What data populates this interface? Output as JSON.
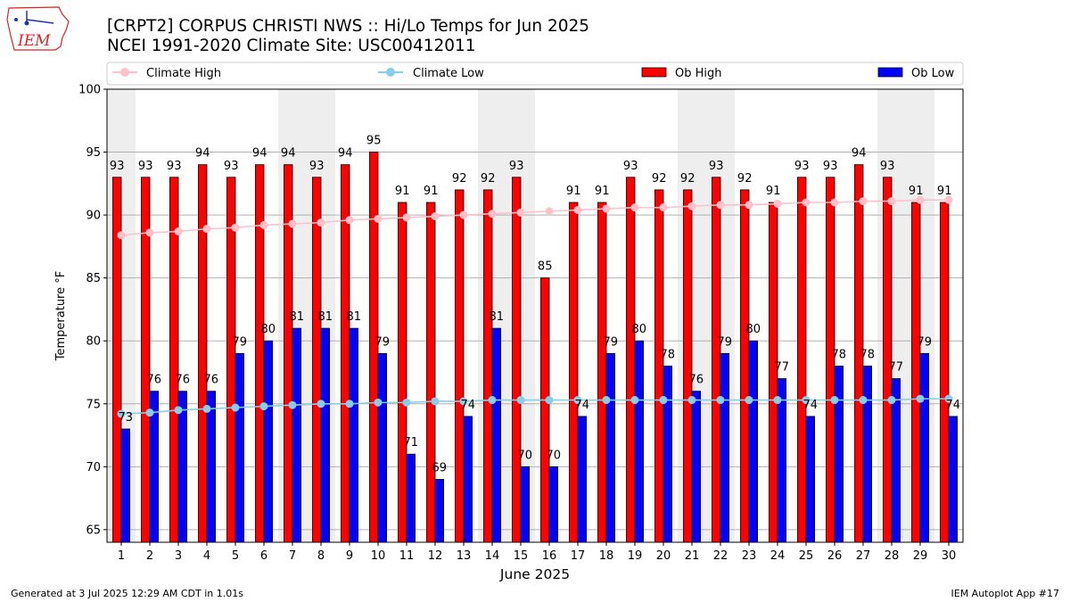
{
  "header": {
    "title_line1": "[CRPT2] CORPUS CHRISTI NWS :: Hi/Lo Temps for Jun 2025",
    "title_line2": "NCEI 1991-2020 Climate Site: USC00412011",
    "logo_text": "IEM"
  },
  "footer": {
    "generated": "Generated at 3 Jul 2025 12:29 AM CDT in 1.01s",
    "app": "IEM Autoplot App #17"
  },
  "colors": {
    "ob_high": "#ff0000",
    "ob_low": "#0000ff",
    "climate_high": "#ffc0cb",
    "climate_low": "#87ceeb",
    "weekend_shade": "#eeeeee",
    "grid": "#b0b0b0"
  },
  "chart_data": {
    "type": "bar",
    "title": "[CRPT2] CORPUS CHRISTI NWS :: Hi/Lo Temps for Jun 2025",
    "subtitle": "NCEI 1991-2020 Climate Site: USC00412011",
    "xlabel": "June 2025",
    "ylabel": "Temperature °F",
    "ylim": [
      64,
      100
    ],
    "yticks": [
      65,
      70,
      75,
      80,
      85,
      90,
      95,
      100
    ],
    "categories": [
      "1",
      "2",
      "3",
      "4",
      "5",
      "6",
      "7",
      "8",
      "9",
      "10",
      "11",
      "12",
      "13",
      "14",
      "15",
      "16",
      "17",
      "18",
      "19",
      "20",
      "21",
      "22",
      "23",
      "24",
      "25",
      "26",
      "27",
      "28",
      "29",
      "30"
    ],
    "grid": true,
    "legend_position": "top",
    "weekend_days": [
      1,
      7,
      8,
      14,
      15,
      21,
      22,
      28,
      29
    ],
    "series": [
      {
        "name": "Climate High",
        "kind": "line",
        "values": [
          88.4,
          88.6,
          88.7,
          88.9,
          89.0,
          89.2,
          89.3,
          89.4,
          89.6,
          89.7,
          89.8,
          89.9,
          90.0,
          90.1,
          90.2,
          90.3,
          90.4,
          90.5,
          90.6,
          90.6,
          90.7,
          90.8,
          90.8,
          90.9,
          91.0,
          91.0,
          91.1,
          91.1,
          91.2,
          91.2
        ]
      },
      {
        "name": "Climate Low",
        "kind": "line",
        "values": [
          74.2,
          74.3,
          74.5,
          74.6,
          74.7,
          74.8,
          74.9,
          75.0,
          75.0,
          75.1,
          75.1,
          75.2,
          75.2,
          75.3,
          75.3,
          75.3,
          75.3,
          75.3,
          75.3,
          75.3,
          75.3,
          75.3,
          75.3,
          75.3,
          75.3,
          75.3,
          75.3,
          75.3,
          75.4,
          75.4
        ]
      },
      {
        "name": "Ob High",
        "kind": "bar",
        "values": [
          93,
          93,
          93,
          94,
          93,
          94,
          94,
          93,
          94,
          95,
          91,
          91,
          92,
          92,
          93,
          85,
          91,
          91,
          93,
          92,
          92,
          93,
          92,
          91,
          93,
          93,
          94,
          93,
          91,
          91
        ]
      },
      {
        "name": "Ob Low",
        "kind": "bar",
        "values": [
          73,
          76,
          76,
          76,
          79,
          80,
          81,
          81,
          81,
          79,
          71,
          69,
          74,
          81,
          70,
          70,
          74,
          79,
          80,
          78,
          76,
          79,
          80,
          77,
          74,
          78,
          78,
          77,
          79,
          74
        ]
      }
    ]
  }
}
